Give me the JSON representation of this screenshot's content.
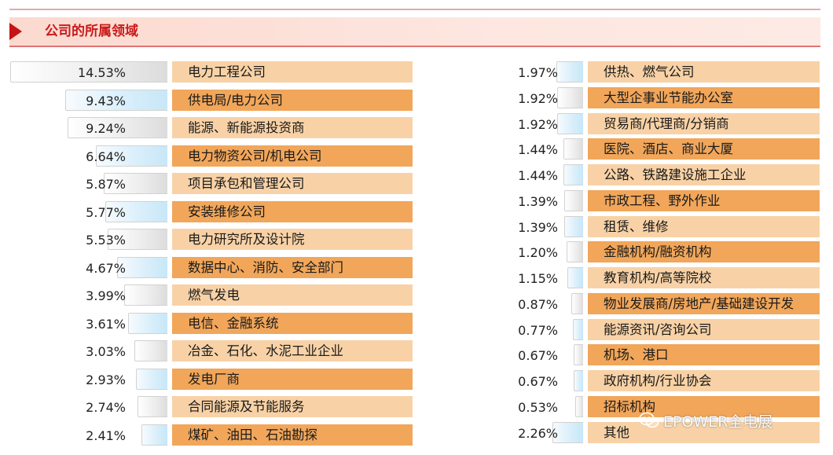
{
  "header": {
    "title": "公司的所属领域"
  },
  "chart_data": {
    "type": "bar",
    "title": "公司的所属领域",
    "unit": "%",
    "columns": [
      {
        "categories": [
          "电力工程公司",
          "供电局/电力公司",
          "能源、新能源投资商",
          "电力物资公司/机电公司",
          "项目承包和管理公司",
          "安装维修公司",
          "电力研究所及设计院",
          "数据中心、消防、安全部门",
          "燃气发电",
          "电信、金融系统",
          "冶金、石化、水泥工业企业",
          "发电厂商",
          "合同能源及节能服务",
          "煤矿、油田、石油勘探"
        ],
        "values": [
          14.53,
          9.43,
          9.24,
          6.64,
          5.87,
          5.77,
          5.53,
          4.67,
          3.99,
          3.61,
          3.03,
          2.93,
          2.74,
          2.41
        ],
        "labels": [
          "14.53%",
          "9.43%",
          "9.24%",
          "6.64%",
          "5.87%",
          "5.77%",
          "5.53%",
          "4.67%",
          "3.99%",
          "3.61%",
          "3.03%",
          "2.93%",
          "2.74%",
          "2.41%"
        ]
      },
      {
        "categories": [
          "供热、燃气公司",
          "大型企事业节能办公室",
          "贸易商/代理商/分销商",
          "医院、酒店、商业大厦",
          "公路、铁路建设施工企业",
          "市政工程、野外作业",
          "租赁、维修",
          "金融机构/融资机构",
          "教育机构/高等院校",
          "物业发展商/房地产/基础建设开发",
          "能源资讯/咨询公司",
          "机场、港口",
          "政府机构/行业协会",
          "招标机构",
          "其他"
        ],
        "values": [
          1.97,
          1.92,
          1.92,
          1.44,
          1.44,
          1.39,
          1.39,
          1.2,
          1.15,
          0.87,
          0.77,
          0.67,
          0.67,
          0.53,
          2.26
        ],
        "labels": [
          "1.97%",
          "1.92%",
          "1.92%",
          "1.44%",
          "1.44%",
          "1.39%",
          "1.39%",
          "1.20%",
          "1.15%",
          "0.87%",
          "0.77%",
          "0.67%",
          "0.67%",
          "0.53%",
          "2.26%"
        ]
      }
    ],
    "colors": {
      "bar_blue": "#c7e7f8",
      "bar_gray": "#dcdcdc",
      "label_light": "#f8d2a6",
      "label_dark": "#f1a65a",
      "header_text": "#c91a1a"
    }
  },
  "watermark": {
    "text": "EPOWER全电展",
    "icon": "wechat-icon"
  }
}
